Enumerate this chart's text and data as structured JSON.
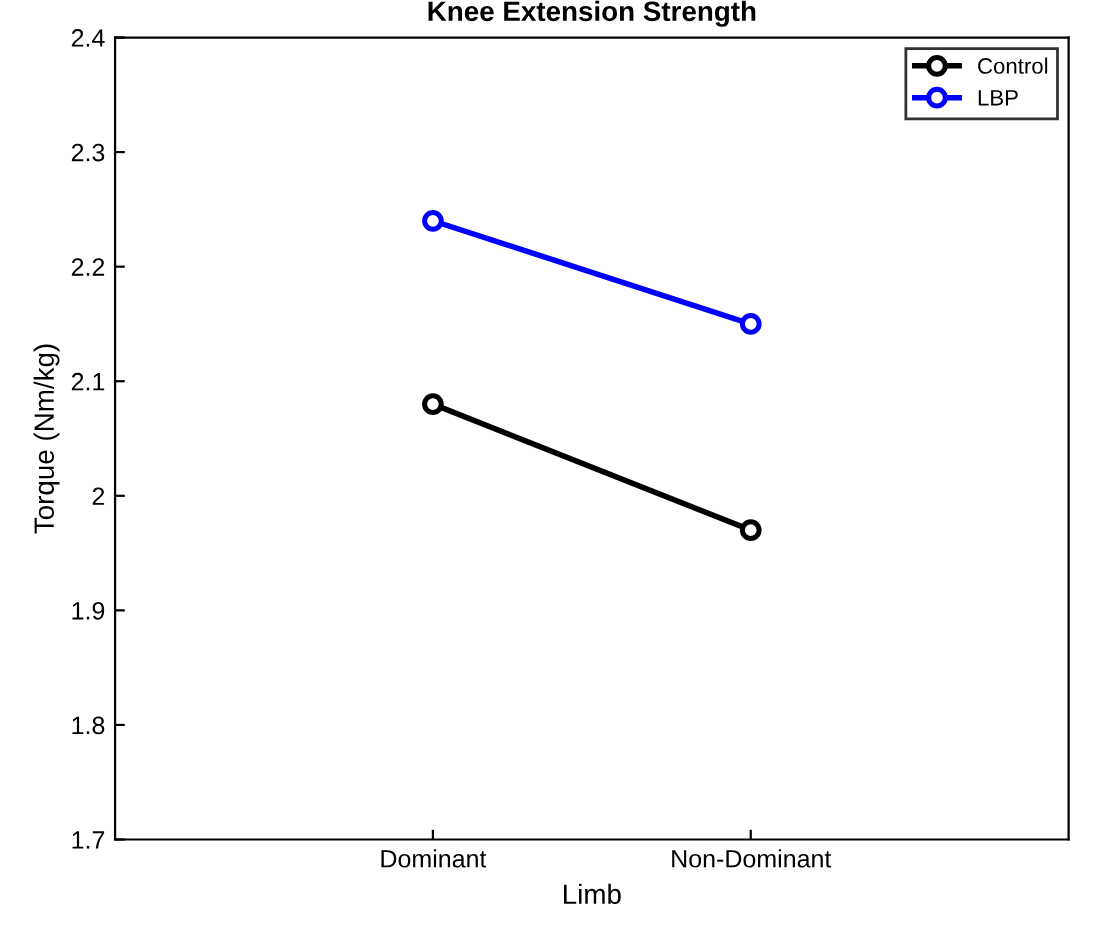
{
  "chart_data": {
    "type": "line",
    "title": "Knee Extension Strength",
    "xlabel": "Limb",
    "ylabel": "Torque (Nm/kg)",
    "categories": [
      "Dominant",
      "Non-Dominant"
    ],
    "series": [
      {
        "name": "Control",
        "color": "#000000",
        "values": [
          2.08,
          1.97
        ]
      },
      {
        "name": "LBP",
        "color": "#0000ff",
        "values": [
          2.24,
          2.15
        ]
      }
    ],
    "ylim": [
      1.7,
      2.4
    ],
    "yticks": [
      1.7,
      1.8,
      1.9,
      2,
      2.1,
      2.2,
      2.3,
      2.4
    ],
    "grid": false,
    "legend": "top right",
    "marker": "circle",
    "line_style": "solid"
  }
}
